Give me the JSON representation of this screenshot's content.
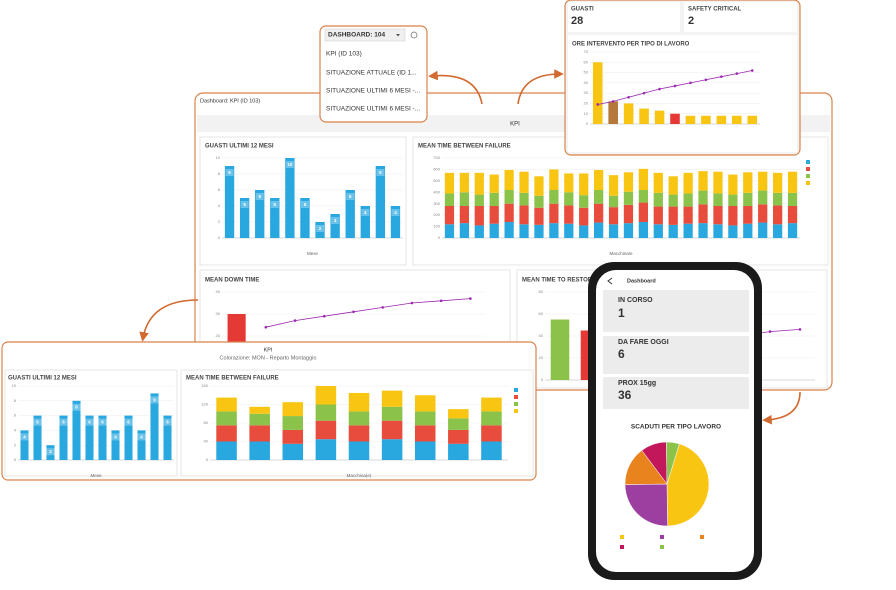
{
  "dropdown": {
    "title": "DASHBOARD: 104",
    "items": [
      "KPI (ID 103)",
      "SITUAZIONE ATTUALE (ID 1...",
      "SITUAZIONE ULTIMI 6 MESI -...",
      "SITUAZIONE ULTIMI 6 MESI -..."
    ]
  },
  "top_panel": {
    "kpis": [
      {
        "label": "GUASTI",
        "value": 28
      },
      {
        "label": "SAFETY CRITICAL",
        "value": 2
      }
    ],
    "chart": {
      "type": "bar",
      "title": "ORE INTERVENTO PER TIPO DI LAVORO",
      "values": [
        60,
        22,
        20,
        15,
        13,
        10,
        8,
        8,
        8,
        8,
        8
      ],
      "color": "#f9c513",
      "colors": [
        "#f9c513",
        "#b5773a",
        "#f9c513",
        "#f9c513",
        "#f9c513",
        "#e53935",
        "#f9c513",
        "#f9c513",
        "#f9c513",
        "#f9c513",
        "#f9c513"
      ],
      "line": [
        19,
        22,
        26,
        30,
        34,
        37,
        40,
        43,
        46,
        49,
        52
      ],
      "line_color": "#9c27b0",
      "ylim": [
        0,
        70
      ],
      "yticks": [
        0,
        10,
        20,
        30,
        40,
        50,
        60,
        70
      ]
    }
  },
  "main": {
    "header": "Dashboard: KPI (ID 103)",
    "tab": "KPI",
    "guasti": {
      "type": "bar",
      "title": "GUASTI ULTIMI 12 MESI",
      "x_label": "Mese",
      "values": [
        9,
        5,
        6,
        5,
        10,
        5,
        2,
        3,
        6,
        4,
        9,
        4
      ],
      "color": "#29a8e0",
      "value_boxes": true,
      "ylim": [
        0,
        10
      ],
      "yticks": [
        0,
        2,
        4,
        6,
        8,
        10
      ]
    },
    "mtbf": {
      "type": "stacked_bar",
      "title": "MEAN TIME BETWEEN FAILURE",
      "x_label": "Macchina/e",
      "ylim": [
        0,
        700
      ],
      "yticks": [
        0,
        100,
        200,
        300,
        400,
        500,
        600,
        700
      ],
      "series": [
        {
          "color": "#29a8e0",
          "values": [
            120,
            130,
            110,
            125,
            140,
            120,
            115,
            130,
            125,
            110,
            135,
            120,
            130,
            140,
            120,
            115,
            125,
            130,
            120,
            110,
            125,
            135,
            120,
            130
          ]
        },
        {
          "color": "#e74c3c",
          "values": [
            160,
            150,
            170,
            155,
            160,
            165,
            150,
            170,
            160,
            155,
            165,
            150,
            160,
            170,
            155,
            160,
            150,
            165,
            160,
            170,
            155,
            160,
            165,
            150
          ]
        },
        {
          "color": "#8bc34a",
          "values": [
            110,
            120,
            100,
            115,
            120,
            110,
            105,
            120,
            115,
            110,
            120,
            100,
            115,
            110,
            120,
            105,
            115,
            120,
            110,
            100,
            115,
            120,
            110,
            115
          ]
        },
        {
          "color": "#f9c513",
          "values": [
            180,
            170,
            190,
            160,
            175,
            185,
            170,
            180,
            165,
            190,
            175,
            180,
            170,
            185,
            175,
            160,
            180,
            170,
            190,
            175,
            180,
            165,
            175,
            185
          ]
        }
      ]
    },
    "mdt": {
      "type": "bar",
      "title": "MEAN DOWN TIME",
      "values": [
        30,
        null,
        null,
        null,
        null,
        null,
        null,
        null,
        null
      ],
      "color": "#e53935",
      "line": [
        null,
        24,
        27,
        29,
        31,
        33,
        35,
        36,
        37
      ],
      "line_color": "#9c27b0",
      "ylim": [
        0,
        40
      ],
      "yticks": [
        0,
        10,
        20,
        30,
        40
      ]
    },
    "mttr": {
      "type": "bar",
      "title": "MEAN TIME TO RESTORE",
      "values": [
        55,
        45,
        40,
        25,
        null,
        null,
        null,
        null,
        null
      ],
      "color": "#e53935",
      "colors": [
        "#8bc34a",
        "#e53935",
        "#e53935",
        "#f9c513",
        "#e53935",
        "#e53935",
        "#e53935",
        "#e53935",
        "#e53935"
      ],
      "line": [
        null,
        10,
        16,
        22,
        28,
        34,
        40,
        44,
        46
      ],
      "line_color": "#9c27b0",
      "ylim": [
        0,
        80
      ],
      "yticks": [
        0,
        20,
        40,
        60,
        80
      ]
    }
  },
  "bottom_panel": {
    "title": "KPI",
    "subtitle": "Colorazione: MON - Reparto Montaggio",
    "guasti": {
      "type": "bar",
      "title": "GUASTI ULTIMI 12 MESI",
      "x_label": "Mese",
      "values": [
        4,
        6,
        2,
        6,
        8,
        6,
        6,
        4,
        6,
        4,
        9,
        6
      ],
      "color": "#29a8e0",
      "value_boxes": true,
      "ylim": [
        0,
        10
      ],
      "yticks": [
        0,
        2,
        4,
        6,
        8,
        10
      ]
    },
    "mtbf": {
      "type": "stacked_bar",
      "title": "MEAN TIME BETWEEN FAILURE",
      "x_label": "Macchina(e)",
      "ylim": [
        0,
        160
      ],
      "yticks": [
        0,
        40,
        80,
        120,
        160
      ],
      "series": [
        {
          "color": "#29a8e0",
          "values": [
            40,
            40,
            35,
            45,
            40,
            45,
            40,
            35,
            40
          ]
        },
        {
          "color": "#e74c3c",
          "values": [
            35,
            35,
            30,
            40,
            35,
            40,
            35,
            30,
            35
          ]
        },
        {
          "color": "#8bc34a",
          "values": [
            30,
            25,
            30,
            35,
            30,
            30,
            30,
            25,
            30
          ]
        },
        {
          "color": "#f9c513",
          "values": [
            30,
            15,
            30,
            40,
            40,
            35,
            35,
            20,
            30
          ]
        }
      ]
    }
  },
  "phone": {
    "title": "Dashboard",
    "cards": [
      {
        "label": "IN CORSO",
        "value": 1
      },
      {
        "label": "DA FARE OGGI",
        "value": 6
      },
      {
        "label": "PROX 15gg",
        "value": 36
      }
    ],
    "pie": {
      "type": "pie",
      "title": "SCADUTI PER TIPO LAVORO",
      "values": [
        45,
        25,
        15,
        10,
        5
      ],
      "colors": [
        "#f9c513",
        "#9c3fa0",
        "#e8831e",
        "#c2185b",
        "#8bc34a"
      ]
    }
  }
}
